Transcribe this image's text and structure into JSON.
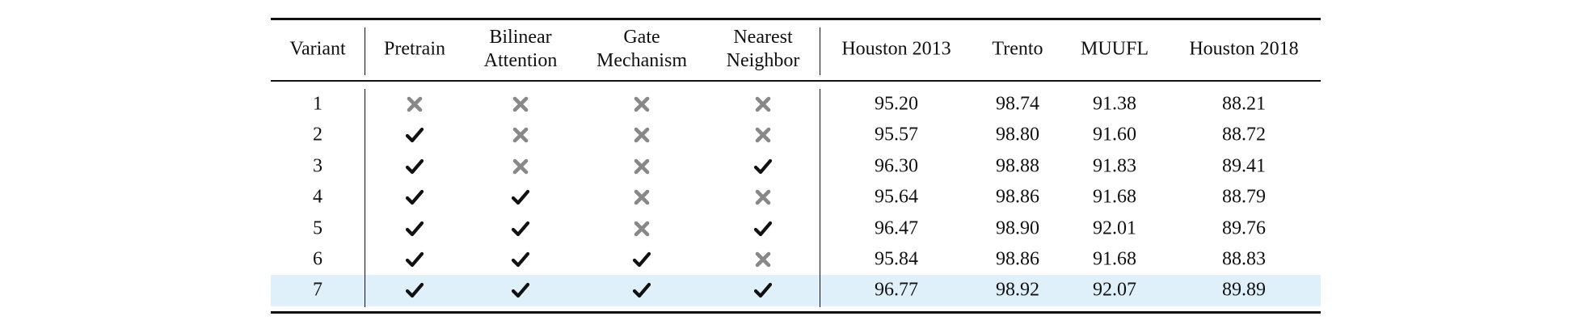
{
  "table": {
    "header": [
      [
        "Variant"
      ],
      [
        "Pretrain"
      ],
      [
        "Bilinear",
        "Attention"
      ],
      [
        "Gate",
        "Mechanism"
      ],
      [
        "Nearest",
        "Neighbor"
      ],
      [
        "Houston 2013"
      ],
      [
        "Trento"
      ],
      [
        "MUUFL"
      ],
      [
        "Houston 2018"
      ]
    ],
    "rows": [
      {
        "variant": "1",
        "flags": [
          false,
          false,
          false,
          false
        ],
        "scores": [
          "95.20",
          "98.74",
          "91.38",
          "88.21"
        ]
      },
      {
        "variant": "2",
        "flags": [
          true,
          false,
          false,
          false
        ],
        "scores": [
          "95.57",
          "98.80",
          "91.60",
          "88.72"
        ]
      },
      {
        "variant": "3",
        "flags": [
          true,
          false,
          false,
          true
        ],
        "scores": [
          "96.30",
          "98.88",
          "91.83",
          "89.41"
        ]
      },
      {
        "variant": "4",
        "flags": [
          true,
          true,
          false,
          false
        ],
        "scores": [
          "95.64",
          "98.86",
          "91.68",
          "88.79"
        ]
      },
      {
        "variant": "5",
        "flags": [
          true,
          true,
          false,
          true
        ],
        "scores": [
          "96.47",
          "98.90",
          "92.01",
          "89.76"
        ]
      },
      {
        "variant": "6",
        "flags": [
          true,
          true,
          true,
          false
        ],
        "scores": [
          "95.84",
          "98.86",
          "91.68",
          "88.83"
        ]
      },
      {
        "variant": "7",
        "flags": [
          true,
          true,
          true,
          true
        ],
        "scores": [
          "96.77",
          "98.92",
          "92.07",
          "89.89"
        ]
      }
    ],
    "highlight_row": 6
  }
}
